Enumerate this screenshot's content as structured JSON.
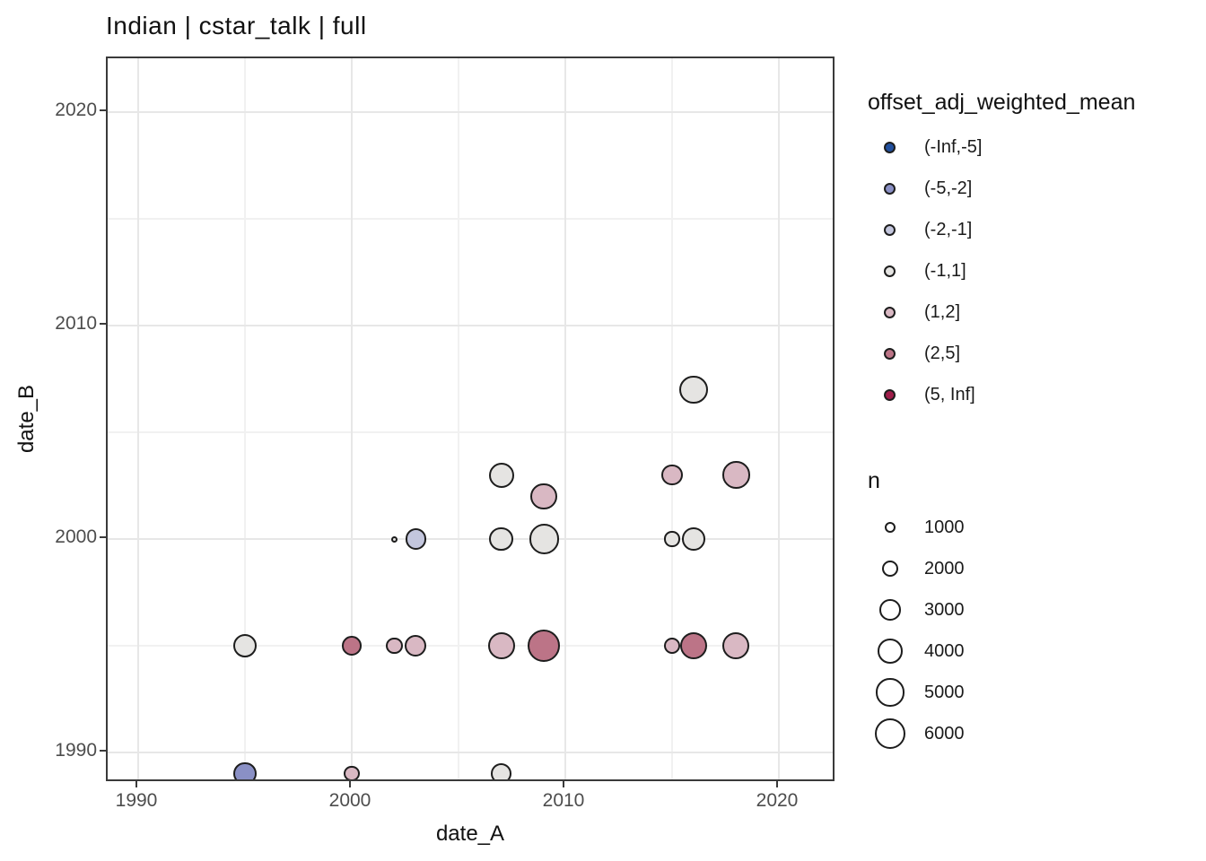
{
  "title": "Indian | cstar_talk | full",
  "chart_data": {
    "type": "scatter",
    "subtype": "bubble",
    "title": "Indian | cstar_talk | full",
    "xlabel": "date_A",
    "ylabel": "date_B",
    "xlim": [
      1988.6,
      2022.7
    ],
    "ylim": [
      1988.6,
      2022.5
    ],
    "x_major_ticks": [
      1990,
      2000,
      2010,
      2020
    ],
    "y_major_ticks": [
      1990,
      2000,
      2010,
      2020
    ],
    "x_minor_ticks": [
      1995,
      2005,
      2015
    ],
    "y_minor_ticks": [
      1995,
      2005,
      2015
    ],
    "grid": true,
    "legend_position": "right",
    "color_legend": {
      "title": "offset_adj_weighted_mean",
      "entries": [
        {
          "label": "(-Inf,-5]",
          "color": "#21509e"
        },
        {
          "label": "(-5,-2]",
          "color": "#8a90c5"
        },
        {
          "label": "(-2,-1]",
          "color": "#c3c6dd"
        },
        {
          "label": "(-1,1]",
          "color": "#e5e4e2"
        },
        {
          "label": "(1,2]",
          "color": "#d9b8c3"
        },
        {
          "label": "(2,5]",
          "color": "#bc7487"
        },
        {
          "label": "(5, Inf]",
          "color": "#9f1d4a"
        }
      ]
    },
    "size_legend": {
      "title": "n",
      "entries": [
        {
          "label": "1000",
          "n": 1000
        },
        {
          "label": "2000",
          "n": 2000
        },
        {
          "label": "3000",
          "n": 3000
        },
        {
          "label": "4000",
          "n": 4000
        },
        {
          "label": "5000",
          "n": 5000
        },
        {
          "label": "6000",
          "n": 6000
        }
      ]
    },
    "points": [
      {
        "x": 1995,
        "y": 1989,
        "bin": "(-5,-2]",
        "n": 3400
      },
      {
        "x": 2000,
        "y": 1989,
        "bin": "(1,2]",
        "n": 1700
      },
      {
        "x": 2007,
        "y": 1989,
        "bin": "(-1,1]",
        "n": 2900
      },
      {
        "x": 1995,
        "y": 1995,
        "bin": "(-1,1]",
        "n": 3700
      },
      {
        "x": 2000,
        "y": 1995,
        "bin": "(2,5]",
        "n": 2600
      },
      {
        "x": 2002,
        "y": 1995,
        "bin": "(1,2]",
        "n": 1900
      },
      {
        "x": 2003,
        "y": 1995,
        "bin": "(1,2]",
        "n": 3100
      },
      {
        "x": 2007,
        "y": 1995,
        "bin": "(1,2]",
        "n": 4700
      },
      {
        "x": 2009,
        "y": 1995,
        "bin": "(2,5]",
        "n": 6500
      },
      {
        "x": 2015,
        "y": 1995,
        "bin": "(1,2]",
        "n": 1900
      },
      {
        "x": 2016,
        "y": 1995,
        "bin": "(2,5]",
        "n": 4700
      },
      {
        "x": 2018,
        "y": 1995,
        "bin": "(1,2]",
        "n": 4700
      },
      {
        "x": 2002,
        "y": 2000,
        "bin": "(-1,1]",
        "n": 400
      },
      {
        "x": 2003,
        "y": 2000,
        "bin": "(-2,-1]",
        "n": 2900
      },
      {
        "x": 2007,
        "y": 2000,
        "bin": "(-1,1]",
        "n": 3700
      },
      {
        "x": 2009,
        "y": 2000,
        "bin": "(-1,1]",
        "n": 5600
      },
      {
        "x": 2015,
        "y": 2000,
        "bin": "(-1,1]",
        "n": 1700
      },
      {
        "x": 2016,
        "y": 2000,
        "bin": "(-1,1]",
        "n": 3500
      },
      {
        "x": 2009,
        "y": 2002,
        "bin": "(1,2]",
        "n": 4600
      },
      {
        "x": 2007,
        "y": 2003,
        "bin": "(-1,1]",
        "n": 4100
      },
      {
        "x": 2015,
        "y": 2003,
        "bin": "(1,2]",
        "n": 3000
      },
      {
        "x": 2018,
        "y": 2003,
        "bin": "(1,2]",
        "n": 4800
      },
      {
        "x": 2016,
        "y": 2007,
        "bin": "(-1,1]",
        "n": 5200
      }
    ]
  }
}
